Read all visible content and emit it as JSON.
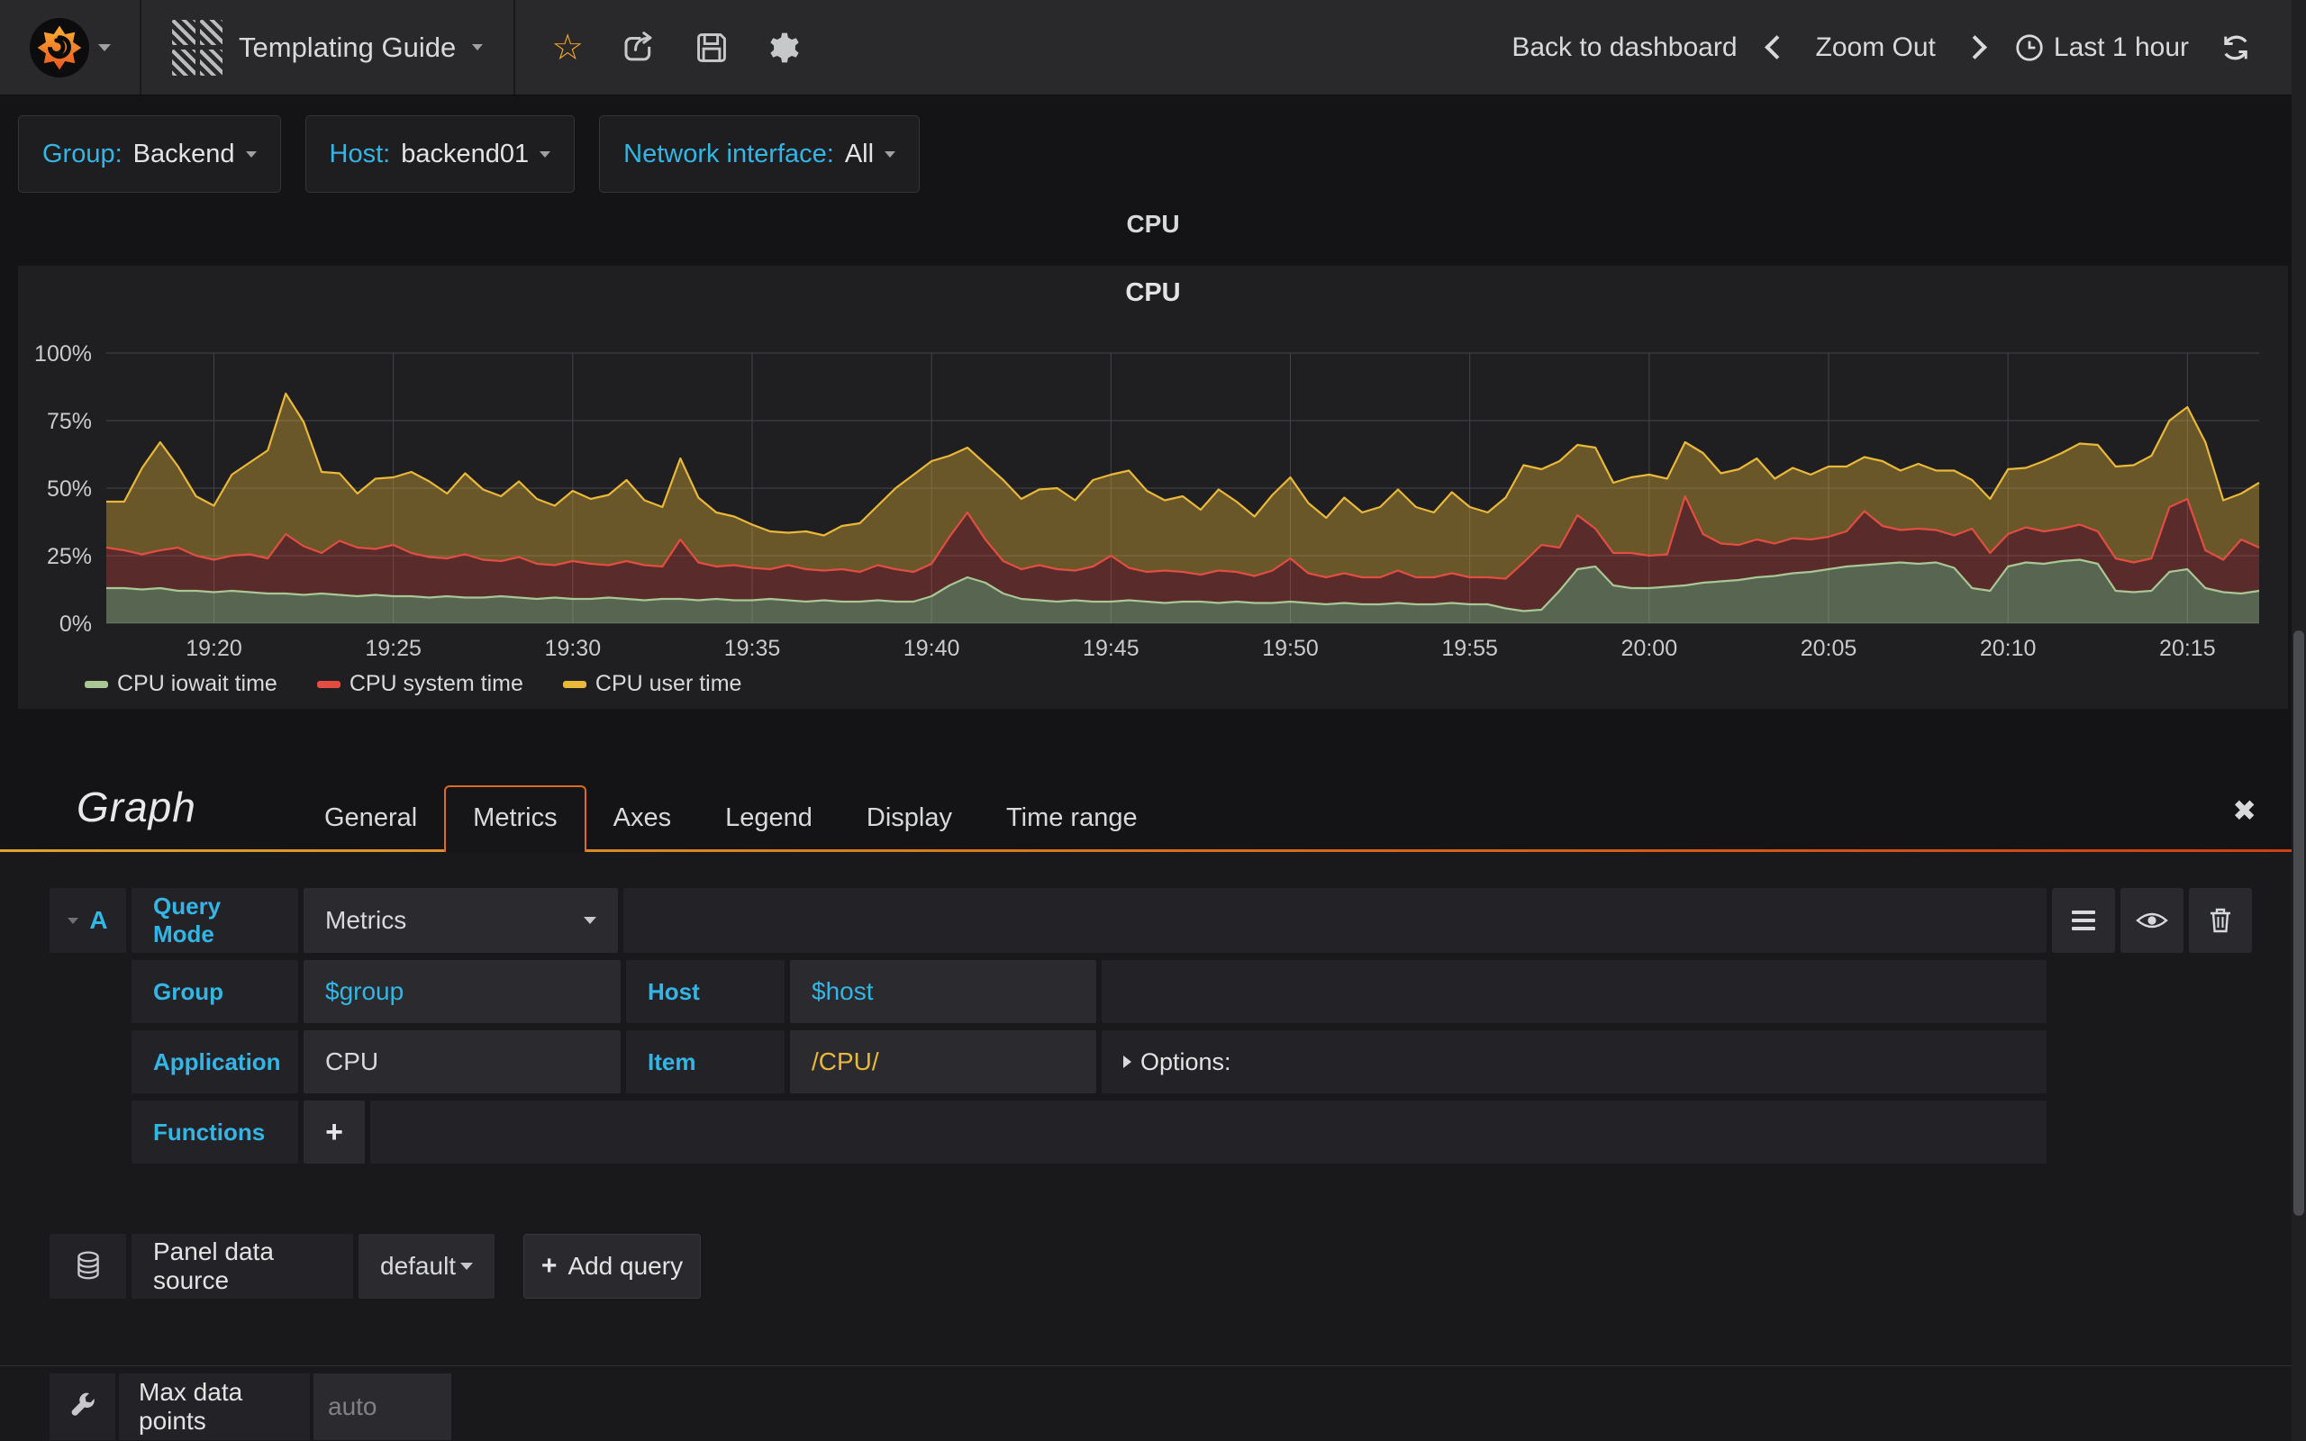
{
  "colors": {
    "accent_cyan": "#33b5e5",
    "accent_orange": "#dd6b1d",
    "page_bg": "#141416",
    "panel_bg": "#1f1f22",
    "navbar_bg": "#29292c",
    "star_orange": "#f7a525"
  },
  "navbar": {
    "title": "Templating Guide",
    "back_to_dashboard": "Back to dashboard",
    "zoom_out": "Zoom Out",
    "time_range": "Last 1 hour"
  },
  "variables": [
    {
      "label": "Group:",
      "value": "Backend"
    },
    {
      "label": "Host:",
      "value": "backend01"
    },
    {
      "label": "Network interface:",
      "value": "All"
    }
  ],
  "row_title": "CPU",
  "chart_data": {
    "type": "area",
    "stacked": true,
    "title": "CPU",
    "grid": true,
    "legend_position": "bottom",
    "ylim": [
      0,
      100
    ],
    "y_ticks": [
      0,
      25,
      50,
      75,
      100
    ],
    "y_tick_suffix": "%",
    "x_total_min": 60,
    "x_tick_start_min": 3,
    "x_tick_step_min": 5,
    "x_tick_labels": [
      "19:20",
      "19:25",
      "19:30",
      "19:35",
      "19:40",
      "19:45",
      "19:50",
      "19:55",
      "20:00",
      "20:05",
      "20:10",
      "20:15"
    ],
    "series": [
      {
        "name": "CPU iowait time",
        "color": "#a8c793",
        "fill_opacity": 0.42,
        "values": [
          13,
          13,
          12.5,
          13,
          12,
          12,
          11.5,
          12,
          11.5,
          11,
          11,
          10.5,
          11,
          10.5,
          10,
          10.5,
          10,
          10,
          9.5,
          10,
          9.5,
          9.5,
          10,
          9.5,
          9,
          9.5,
          9,
          9,
          9.5,
          9,
          8.5,
          9,
          9,
          8.5,
          9,
          8.5,
          8.5,
          9,
          8.5,
          8,
          8.5,
          8,
          8,
          8.5,
          8,
          8,
          10,
          14,
          17,
          15,
          11,
          9,
          8.5,
          8,
          8.5,
          8,
          8,
          8.5,
          8,
          7.5,
          8,
          8,
          7.5,
          8,
          7.5,
          7.5,
          8,
          7.5,
          7,
          7.5,
          7,
          7,
          7.5,
          7,
          7,
          7.5,
          7,
          7,
          5.5,
          4.5,
          5,
          12,
          20,
          21,
          14,
          13,
          13,
          13.5,
          14,
          15,
          15.5,
          16,
          17,
          17.5,
          18.5,
          19,
          20,
          21,
          21.5,
          22,
          22.5,
          22,
          22.5,
          20.5,
          13,
          12,
          21,
          22.5,
          22,
          23,
          23.5,
          22,
          12,
          11.5,
          12,
          19,
          20,
          13,
          11.5,
          11,
          12
        ]
      },
      {
        "name": "CPU system time",
        "color": "#e24d42",
        "fill_opacity": 0.3,
        "values": [
          15,
          14,
          13,
          14,
          16,
          13,
          12,
          13,
          14,
          13,
          22,
          18,
          15,
          20,
          18,
          17,
          19,
          16,
          15,
          14,
          16,
          14,
          13,
          15,
          13,
          12,
          14,
          13,
          12,
          14,
          13,
          12,
          22,
          14,
          12,
          13,
          12,
          11,
          13,
          12,
          11,
          12,
          11,
          13,
          12,
          11,
          12,
          18,
          24,
          16,
          12,
          11,
          13,
          12,
          11,
          13,
          17,
          12,
          11,
          12,
          11,
          10,
          12,
          11,
          10,
          12,
          16,
          11,
          10,
          11,
          10,
          10,
          12,
          10,
          10,
          11,
          10,
          10,
          11,
          18,
          24,
          16,
          20,
          14,
          12,
          13,
          12,
          12,
          33,
          18,
          14,
          13,
          14,
          12,
          13,
          12,
          12,
          13,
          20,
          14,
          12,
          13,
          12,
          12,
          22,
          14,
          12,
          13,
          12,
          12,
          13,
          12,
          12,
          11,
          12,
          24,
          26,
          14,
          12,
          20,
          16
        ]
      },
      {
        "name": "CPU user time",
        "color": "#eab839",
        "fill_opacity": 0.37,
        "values": [
          17,
          18,
          32,
          40,
          30,
          22,
          20,
          30,
          34,
          40,
          52,
          46,
          30,
          25,
          20,
          26,
          25,
          30,
          28,
          24,
          30,
          26,
          24,
          28,
          24,
          22,
          26,
          24,
          26,
          30,
          24,
          22,
          30,
          24,
          20,
          18,
          16,
          14,
          12,
          14,
          13,
          16,
          18,
          22,
          30,
          36,
          38,
          30,
          24,
          28,
          30,
          26,
          28,
          30,
          26,
          32,
          30,
          36,
          30,
          26,
          28,
          24,
          30,
          26,
          22,
          28,
          30,
          26,
          22,
          28,
          24,
          26,
          30,
          26,
          24,
          30,
          26,
          24,
          30,
          36,
          28,
          32,
          26,
          30,
          26,
          28,
          30,
          28,
          20,
          30,
          26,
          28,
          30,
          24,
          26,
          24,
          26,
          24,
          20,
          24,
          22,
          24,
          22,
          24,
          18,
          20,
          24,
          22,
          26,
          28,
          30,
          32,
          34,
          36,
          38,
          32,
          34,
          40,
          22,
          17,
          24
        ]
      }
    ]
  },
  "editor": {
    "panel_type": "Graph",
    "tabs": [
      "General",
      "Metrics",
      "Axes",
      "Legend",
      "Display",
      "Time range"
    ],
    "active_tab": "Metrics",
    "query": {
      "ref_id": "A",
      "mode_label": "Query Mode",
      "mode_value": "Metrics",
      "group_label": "Group",
      "group_value": "$group",
      "host_label": "Host",
      "host_value": "$host",
      "application_label": "Application",
      "application_value": "CPU",
      "item_label": "Item",
      "item_value": "/CPU/",
      "options_label": "Options:",
      "functions_label": "Functions",
      "add_function_label": "+"
    },
    "datasource": {
      "label": "Panel data source",
      "value": "default",
      "add_query_label": "Add query"
    },
    "settings": {
      "max_data_points_label": "Max data points",
      "max_data_points_placeholder": "auto"
    }
  }
}
